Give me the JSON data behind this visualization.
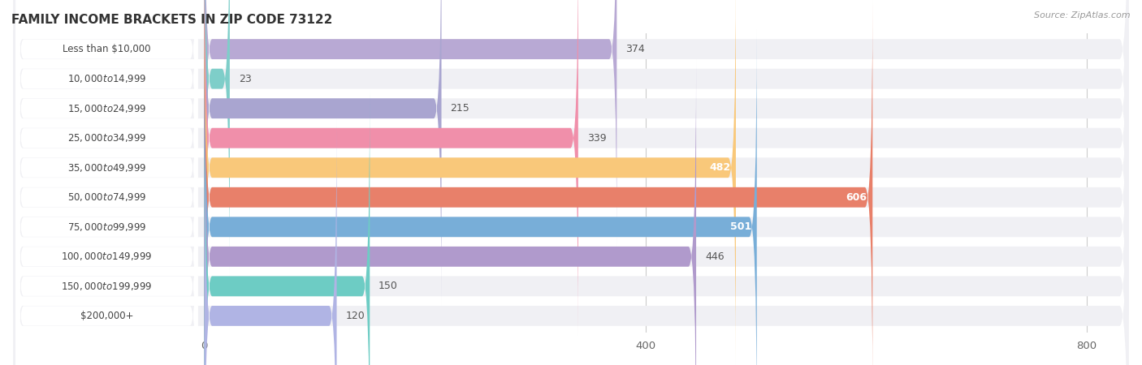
{
  "title": "FAMILY INCOME BRACKETS IN ZIP CODE 73122",
  "source": "Source: ZipAtlas.com",
  "categories": [
    "Less than $10,000",
    "$10,000 to $14,999",
    "$15,000 to $24,999",
    "$25,000 to $34,999",
    "$35,000 to $49,999",
    "$50,000 to $74,999",
    "$75,000 to $99,999",
    "$100,000 to $149,999",
    "$150,000 to $199,999",
    "$200,000+"
  ],
  "values": [
    374,
    23,
    215,
    339,
    482,
    606,
    501,
    446,
    150,
    120
  ],
  "bar_colors": [
    "#b8a9d4",
    "#7ecec9",
    "#a9a5d0",
    "#f08faa",
    "#f9c87a",
    "#e8806a",
    "#78aed8",
    "#b09acc",
    "#6dccc4",
    "#b0b4e4"
  ],
  "label_colors": [
    "dark",
    "dark",
    "dark",
    "dark",
    "white",
    "white",
    "white",
    "dark",
    "dark",
    "dark"
  ],
  "xmax": 800,
  "xticks": [
    0,
    400,
    800
  ],
  "bg_color": "#ffffff",
  "row_bg_color": "#f0f0f4",
  "gap_color": "#ffffff",
  "title_fontsize": 11,
  "source_fontsize": 8,
  "label_fontsize": 8.5,
  "value_fontsize": 9
}
